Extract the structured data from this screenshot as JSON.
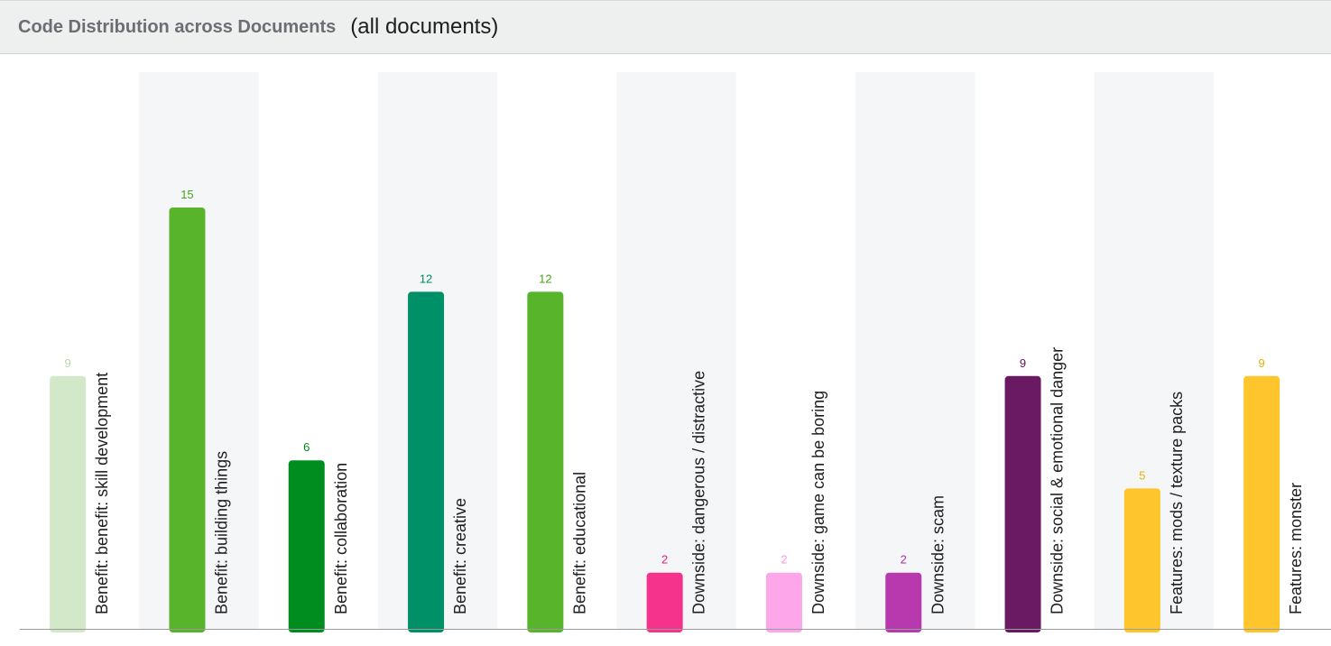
{
  "header": {
    "title": "Code Distribution across Documents",
    "subtitle": "(all documents)"
  },
  "chart_data": {
    "type": "bar",
    "title": "Code Distribution across Documents",
    "subtitle": "(all documents)",
    "grid": false,
    "ylim": [
      0,
      15
    ],
    "categories": [
      "Benefit: benefit: skill development",
      "Benefit: building things",
      "Benefit: collaboration",
      "Benefit: creative",
      "Benefit: educational",
      "Downside: dangerous / distractive",
      "Downside: game can be boring",
      "Downside: scam",
      "Downside: social & emotional danger",
      "Features: mods / texture packs",
      "Features: monster"
    ],
    "values": [
      9,
      15,
      6,
      12,
      12,
      2,
      2,
      2,
      9,
      5,
      9
    ],
    "colors": [
      "#d3e7c9",
      "#58b42a",
      "#008d1f",
      "#009067",
      "#58b42a",
      "#f5328c",
      "#fda6ea",
      "#b839ae",
      "#6a1a62",
      "#fec62c",
      "#fec62c"
    ],
    "label_colors": [
      "#b6d8a6",
      "#45a51b",
      "#00891c",
      "#008a60",
      "#45a51b",
      "#e91e80",
      "#f995e2",
      "#b02ea5",
      "#611257",
      "#e8b000",
      "#e8b000"
    ]
  }
}
